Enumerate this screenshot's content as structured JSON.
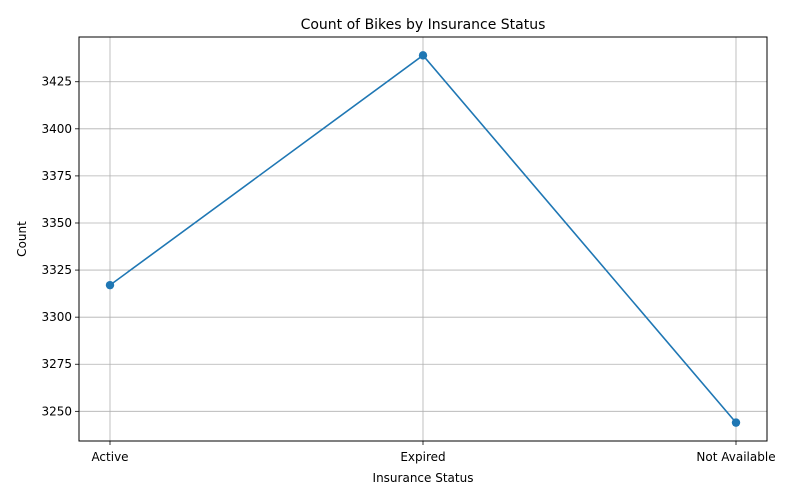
{
  "chart_data": {
    "type": "line",
    "title": "Count of Bikes by Insurance Status",
    "xlabel": "Insurance Status",
    "ylabel": "Count",
    "categories": [
      "Active",
      "Expired",
      "Not Available"
    ],
    "series": [
      {
        "values": [
          3317,
          3439,
          3244
        ],
        "color": "#1f77b4",
        "marker": "circle"
      }
    ],
    "ylim": [
      3234.25,
      3448.75
    ],
    "yticks": [
      3250,
      3275,
      3300,
      3325,
      3350,
      3375,
      3400,
      3425
    ],
    "grid": true,
    "legend": "none"
  }
}
